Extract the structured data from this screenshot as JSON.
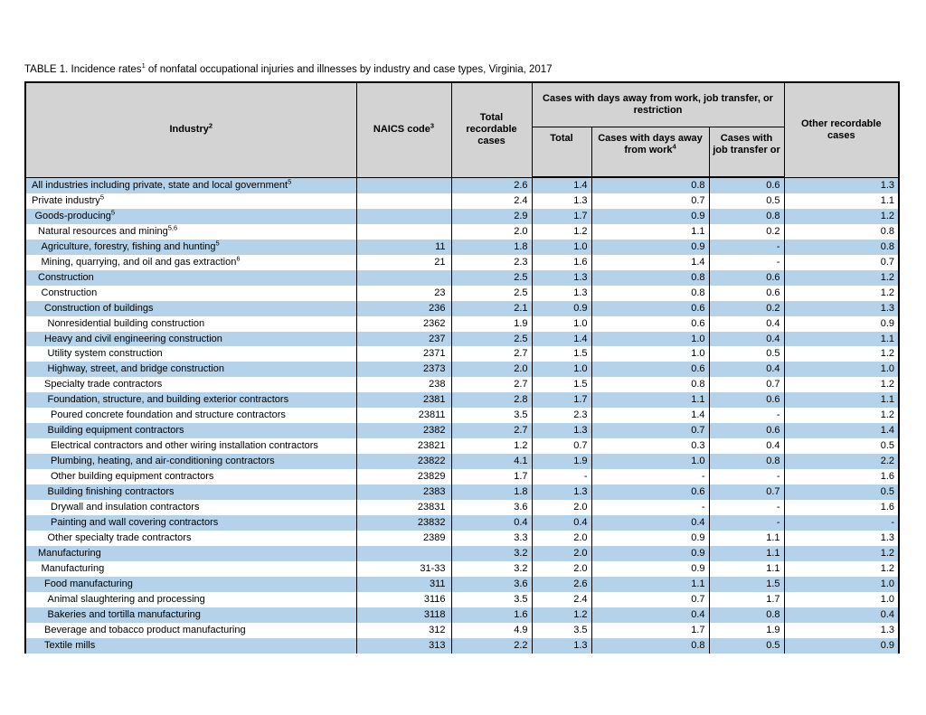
{
  "title": {
    "before": "TABLE 1. Incidence rates",
    "sup": "1",
    "after": " of nonfatal occupational injuries and illnesses by industry and case types, Virginia, 2017"
  },
  "header": {
    "industry": {
      "label": "Industry",
      "sup": "2"
    },
    "naics": {
      "label": "NAICS code",
      "sup": "3"
    },
    "total_recordable": "Total recordable cases",
    "span_group": "Cases with days away from work, job transfer, or restriction",
    "sub_total": "Total",
    "sub_days_away": {
      "label": "Cases with days away from work",
      "sup": "4"
    },
    "sub_job_transfer": "Cases with job transfer or",
    "other": "Other recordable cases"
  },
  "rows": [
    {
      "industry": "All industries including private, state and local government",
      "sup": "5",
      "indent": 0,
      "naics": "",
      "values": [
        "2.6",
        "1.4",
        "0.8",
        "0.6",
        "1.3"
      ]
    },
    {
      "industry": "Private industry",
      "sup": "5",
      "indent": 0,
      "naics": "",
      "values": [
        "2.4",
        "1.3",
        "0.7",
        "0.5",
        "1.1"
      ]
    },
    {
      "industry": "Goods-producing",
      "sup": "5",
      "indent": 1,
      "naics": "",
      "values": [
        "2.9",
        "1.7",
        "0.9",
        "0.8",
        "1.2"
      ]
    },
    {
      "industry": "Natural resources and mining",
      "sup": "5,6",
      "indent": 2,
      "naics": "",
      "values": [
        "2.0",
        "1.2",
        "1.1",
        "0.2",
        "0.8"
      ]
    },
    {
      "industry": "Agriculture, forestry, fishing and hunting",
      "sup": "5",
      "indent": 3,
      "naics": "11",
      "values": [
        "1.8",
        "1.0",
        "0.9",
        "-",
        "0.8"
      ]
    },
    {
      "industry": "Mining, quarrying, and oil and gas extraction",
      "sup": "6",
      "indent": 3,
      "naics": "21",
      "values": [
        "2.3",
        "1.6",
        "1.4",
        "-",
        "0.7"
      ]
    },
    {
      "industry": "Construction",
      "sup": "",
      "indent": 2,
      "naics": "",
      "values": [
        "2.5",
        "1.3",
        "0.8",
        "0.6",
        "1.2"
      ]
    },
    {
      "industry": "Construction",
      "sup": "",
      "indent": 3,
      "naics": "23",
      "values": [
        "2.5",
        "1.3",
        "0.8",
        "0.6",
        "1.2"
      ]
    },
    {
      "industry": "Construction of buildings",
      "sup": "",
      "indent": 4,
      "naics": "236",
      "values": [
        "2.1",
        "0.9",
        "0.6",
        "0.2",
        "1.3"
      ]
    },
    {
      "industry": "Nonresidential building construction",
      "sup": "",
      "indent": 5,
      "naics": "2362",
      "values": [
        "1.9",
        "1.0",
        "0.6",
        "0.4",
        "0.9"
      ]
    },
    {
      "industry": "Heavy and civil engineering construction",
      "sup": "",
      "indent": 4,
      "naics": "237",
      "values": [
        "2.5",
        "1.4",
        "1.0",
        "0.4",
        "1.1"
      ]
    },
    {
      "industry": "Utility system construction",
      "sup": "",
      "indent": 5,
      "naics": "2371",
      "values": [
        "2.7",
        "1.5",
        "1.0",
        "0.5",
        "1.2"
      ]
    },
    {
      "industry": "Highway, street, and bridge construction",
      "sup": "",
      "indent": 5,
      "naics": "2373",
      "values": [
        "2.0",
        "1.0",
        "0.6",
        "0.4",
        "1.0"
      ]
    },
    {
      "industry": "Specialty trade contractors",
      "sup": "",
      "indent": 4,
      "naics": "238",
      "values": [
        "2.7",
        "1.5",
        "0.8",
        "0.7",
        "1.2"
      ]
    },
    {
      "industry": "Foundation, structure, and building exterior contractors",
      "sup": "",
      "indent": 5,
      "naics": "2381",
      "values": [
        "2.8",
        "1.7",
        "1.1",
        "0.6",
        "1.1"
      ]
    },
    {
      "industry": "Poured concrete foundation and structure contractors",
      "sup": "",
      "indent": 6,
      "naics": "23811",
      "values": [
        "3.5",
        "2.3",
        "1.4",
        "-",
        "1.2"
      ]
    },
    {
      "industry": "Building equipment contractors",
      "sup": "",
      "indent": 5,
      "naics": "2382",
      "values": [
        "2.7",
        "1.3",
        "0.7",
        "0.6",
        "1.4"
      ]
    },
    {
      "industry": "Electrical contractors and other wiring installation contractors",
      "sup": "",
      "indent": 6,
      "naics": "23821",
      "values": [
        "1.2",
        "0.7",
        "0.3",
        "0.4",
        "0.5"
      ]
    },
    {
      "industry": "Plumbing, heating, and air-conditioning contractors",
      "sup": "",
      "indent": 6,
      "naics": "23822",
      "values": [
        "4.1",
        "1.9",
        "1.0",
        "0.8",
        "2.2"
      ]
    },
    {
      "industry": "Other building equipment contractors",
      "sup": "",
      "indent": 6,
      "naics": "23829",
      "values": [
        "1.7",
        "-",
        "-",
        "-",
        "1.6"
      ]
    },
    {
      "industry": "Building finishing contractors",
      "sup": "",
      "indent": 5,
      "naics": "2383",
      "values": [
        "1.8",
        "1.3",
        "0.6",
        "0.7",
        "0.5"
      ]
    },
    {
      "industry": "Drywall and insulation contractors",
      "sup": "",
      "indent": 6,
      "naics": "23831",
      "values": [
        "3.6",
        "2.0",
        "-",
        "-",
        "1.6"
      ]
    },
    {
      "industry": "Painting and wall covering contractors",
      "sup": "",
      "indent": 6,
      "naics": "23832",
      "values": [
        "0.4",
        "0.4",
        "0.4",
        "-",
        "-"
      ]
    },
    {
      "industry": "Other specialty trade contractors",
      "sup": "",
      "indent": 5,
      "naics": "2389",
      "values": [
        "3.3",
        "2.0",
        "0.9",
        "1.1",
        "1.3"
      ]
    },
    {
      "industry": "Manufacturing",
      "sup": "",
      "indent": 2,
      "naics": "",
      "values": [
        "3.2",
        "2.0",
        "0.9",
        "1.1",
        "1.2"
      ]
    },
    {
      "industry": "Manufacturing",
      "sup": "",
      "indent": 3,
      "naics": "31-33",
      "values": [
        "3.2",
        "2.0",
        "0.9",
        "1.1",
        "1.2"
      ]
    },
    {
      "industry": "Food manufacturing",
      "sup": "",
      "indent": 4,
      "naics": "311",
      "values": [
        "3.6",
        "2.6",
        "1.1",
        "1.5",
        "1.0"
      ]
    },
    {
      "industry": "Animal slaughtering and processing",
      "sup": "",
      "indent": 5,
      "naics": "3116",
      "values": [
        "3.5",
        "2.4",
        "0.7",
        "1.7",
        "1.0"
      ]
    },
    {
      "industry": "Bakeries and tortilla manufacturing",
      "sup": "",
      "indent": 5,
      "naics": "3118",
      "values": [
        "1.6",
        "1.2",
        "0.4",
        "0.8",
        "0.4"
      ]
    },
    {
      "industry": "Beverage and tobacco product manufacturing",
      "sup": "",
      "indent": 4,
      "naics": "312",
      "values": [
        "4.9",
        "3.5",
        "1.7",
        "1.9",
        "1.3"
      ]
    },
    {
      "industry": "Textile mills",
      "sup": "",
      "indent": 4,
      "naics": "313",
      "values": [
        "2.2",
        "1.3",
        "0.8",
        "0.5",
        "0.9"
      ]
    }
  ],
  "colors": {
    "row_stripe_blue": "#b4d2e9",
    "header_gray": "#d3d3d3",
    "border_black": "#000000"
  }
}
